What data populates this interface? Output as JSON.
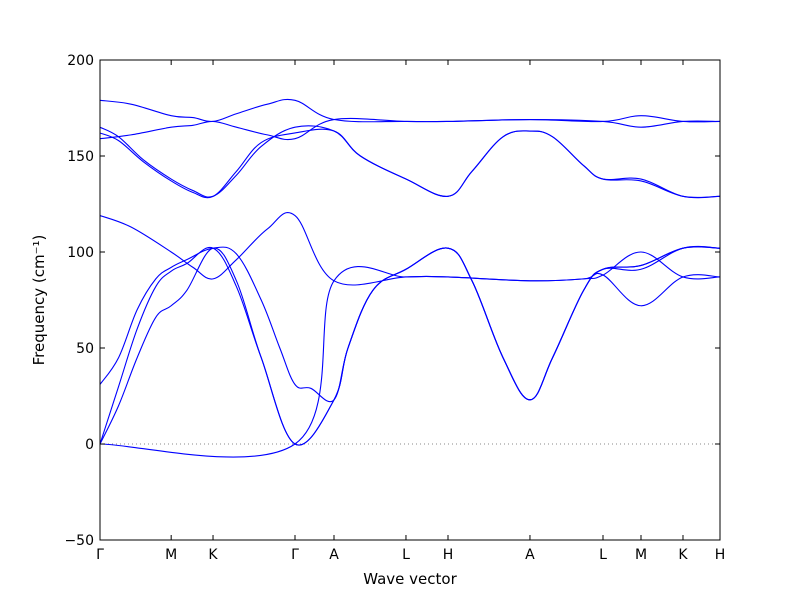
{
  "chart_data": {
    "type": "line",
    "title": "",
    "xlabel": "Wave vector",
    "ylabel": "Frequency (cm⁻¹)",
    "ylim": [
      -50,
      200
    ],
    "yticks": [
      -50,
      0,
      50,
      100,
      150,
      200
    ],
    "grid": false,
    "legend": "none",
    "line_color": "#0000ff",
    "zero_line": {
      "y": 0,
      "style": "dotted",
      "color": "#888888"
    },
    "x_range": [
      0,
      1
    ],
    "kpoints": [
      {
        "label": "Γ",
        "x": 0.0
      },
      {
        "label": "M",
        "x": 0.1148
      },
      {
        "label": "K",
        "x": 0.1823
      },
      {
        "label": "Γ",
        "x": 0.3145
      },
      {
        "label": "A",
        "x": 0.3774
      },
      {
        "label": "L",
        "x": 0.4935
      },
      {
        "label": "H",
        "x": 0.5613
      },
      {
        "label": "A",
        "x": 0.6935
      },
      {
        "label": "L",
        "x": 0.8113
      },
      {
        "label": "M",
        "x": 0.8726
      },
      {
        "label": "K",
        "x": 0.9403
      },
      {
        "label": "H",
        "x": 1.0
      }
    ],
    "series": [
      {
        "values": [
          [
            0,
            0
          ],
          [
            0.03,
            20
          ],
          [
            0.06,
            45
          ],
          [
            0.09,
            66
          ],
          [
            0.1148,
            72
          ],
          [
            0.14,
            80
          ],
          [
            0.1823,
            102
          ],
          [
            0.22,
            85
          ],
          [
            0.26,
            45
          ],
          [
            0.3145,
            0
          ],
          [
            0.3774,
            23
          ],
          [
            0.4,
            50
          ],
          [
            0.44,
            80
          ],
          [
            0.4935,
            91
          ],
          [
            0.5613,
            102
          ],
          [
            0.6,
            85
          ],
          [
            0.65,
            45
          ],
          [
            0.6935,
            23
          ],
          [
            0.73,
            45
          ],
          [
            0.78,
            80
          ],
          [
            0.8113,
            91
          ],
          [
            0.8726,
            91
          ],
          [
            0.9403,
            102
          ],
          [
            1.0,
            102
          ]
        ]
      },
      {
        "values": [
          [
            0,
            0
          ],
          [
            0.03,
            30
          ],
          [
            0.06,
            60
          ],
          [
            0.09,
            82
          ],
          [
            0.1148,
            90
          ],
          [
            0.14,
            94
          ],
          [
            0.1823,
            102
          ],
          [
            0.22,
            82
          ],
          [
            0.26,
            45
          ],
          [
            0.3145,
            0
          ],
          [
            0.3774,
            23
          ],
          [
            0.4,
            50
          ],
          [
            0.44,
            80
          ],
          [
            0.4935,
            91
          ],
          [
            0.5613,
            102
          ],
          [
            0.6,
            85
          ],
          [
            0.65,
            45
          ],
          [
            0.6935,
            23
          ],
          [
            0.73,
            45
          ],
          [
            0.78,
            80
          ],
          [
            0.8113,
            91
          ],
          [
            0.8726,
            93
          ],
          [
            0.9403,
            102
          ],
          [
            1.0,
            102
          ]
        ]
      },
      {
        "values": [
          [
            0,
            31
          ],
          [
            0.03,
            45
          ],
          [
            0.06,
            70
          ],
          [
            0.09,
            86
          ],
          [
            0.1148,
            92
          ],
          [
            0.14,
            96
          ],
          [
            0.1823,
            102
          ],
          [
            0.22,
            99
          ],
          [
            0.26,
            75
          ],
          [
            0.29,
            50
          ],
          [
            0.3145,
            31
          ],
          [
            0.34,
            29
          ],
          [
            0.3774,
            23
          ],
          [
            0.4,
            50
          ],
          [
            0.44,
            80
          ],
          [
            0.4935,
            91
          ],
          [
            0.5613,
            102
          ],
          [
            0.6,
            85
          ],
          [
            0.65,
            45
          ],
          [
            0.6935,
            23
          ],
          [
            0.73,
            45
          ],
          [
            0.78,
            80
          ],
          [
            0.8113,
            91
          ],
          [
            0.8726,
            93
          ],
          [
            0.9403,
            102
          ],
          [
            1.0,
            102
          ]
        ]
      },
      {
        "values": [
          [
            0,
            119
          ],
          [
            0.05,
            113
          ],
          [
            0.1148,
            100
          ],
          [
            0.15,
            92
          ],
          [
            0.1823,
            86
          ],
          [
            0.22,
            96
          ],
          [
            0.27,
            112
          ],
          [
            0.3145,
            119
          ],
          [
            0.3774,
            85
          ],
          [
            0.4935,
            87
          ],
          [
            0.5613,
            87
          ],
          [
            0.6935,
            85
          ],
          [
            0.78,
            86
          ],
          [
            0.8113,
            88
          ],
          [
            0.8726,
            100
          ],
          [
            0.9403,
            87
          ],
          [
            1.0,
            87
          ]
        ]
      },
      {
        "values": [
          [
            0,
            0
          ],
          [
            0.3145,
            0
          ],
          [
            0.3774,
            85
          ],
          [
            0.4935,
            87
          ],
          [
            0.5613,
            87
          ],
          [
            0.6935,
            85
          ],
          [
            0.78,
            86
          ],
          [
            0.8113,
            88
          ],
          [
            0.8726,
            72
          ],
          [
            0.9403,
            87
          ],
          [
            1.0,
            87
          ]
        ]
      },
      {
        "values": [
          [
            0,
            179
          ],
          [
            0.05,
            177
          ],
          [
            0.1148,
            171
          ],
          [
            0.15,
            170
          ],
          [
            0.1823,
            168
          ],
          [
            0.22,
            172
          ],
          [
            0.27,
            177
          ],
          [
            0.3145,
            179
          ],
          [
            0.3774,
            169
          ],
          [
            0.4935,
            168
          ],
          [
            0.5613,
            168
          ],
          [
            0.6935,
            169
          ],
          [
            0.8113,
            168
          ],
          [
            0.8726,
            171
          ],
          [
            0.9403,
            168
          ],
          [
            1.0,
            168
          ]
        ]
      },
      {
        "values": [
          [
            0,
            159
          ],
          [
            0.05,
            161
          ],
          [
            0.1148,
            165
          ],
          [
            0.15,
            166
          ],
          [
            0.1823,
            168
          ],
          [
            0.22,
            165
          ],
          [
            0.27,
            161
          ],
          [
            0.3145,
            159
          ],
          [
            0.3774,
            169
          ],
          [
            0.4935,
            168
          ],
          [
            0.5613,
            168
          ],
          [
            0.6935,
            169
          ],
          [
            0.8113,
            168
          ],
          [
            0.8726,
            165
          ],
          [
            0.9403,
            168
          ],
          [
            1.0,
            168
          ]
        ]
      },
      {
        "values": [
          [
            0,
            165
          ],
          [
            0.03,
            160
          ],
          [
            0.07,
            148
          ],
          [
            0.1148,
            138
          ],
          [
            0.15,
            132
          ],
          [
            0.1823,
            129
          ],
          [
            0.22,
            140
          ],
          [
            0.26,
            155
          ],
          [
            0.3145,
            165
          ],
          [
            0.3774,
            163
          ],
          [
            0.42,
            150
          ],
          [
            0.4935,
            138
          ],
          [
            0.5613,
            129
          ],
          [
            0.6,
            142
          ],
          [
            0.65,
            160
          ],
          [
            0.6935,
            163
          ],
          [
            0.73,
            160
          ],
          [
            0.78,
            145
          ],
          [
            0.8113,
            138
          ],
          [
            0.8726,
            138
          ],
          [
            0.9403,
            129
          ],
          [
            1.0,
            129
          ]
        ]
      },
      {
        "values": [
          [
            0,
            162
          ],
          [
            0.03,
            158
          ],
          [
            0.07,
            147
          ],
          [
            0.1148,
            137
          ],
          [
            0.15,
            131
          ],
          [
            0.1823,
            129
          ],
          [
            0.22,
            142
          ],
          [
            0.26,
            157
          ],
          [
            0.3145,
            162
          ],
          [
            0.3774,
            163
          ],
          [
            0.42,
            150
          ],
          [
            0.4935,
            138
          ],
          [
            0.5613,
            129
          ],
          [
            0.6,
            142
          ],
          [
            0.65,
            160
          ],
          [
            0.6935,
            163
          ],
          [
            0.73,
            160
          ],
          [
            0.78,
            145
          ],
          [
            0.8113,
            138
          ],
          [
            0.8726,
            137
          ],
          [
            0.9403,
            129
          ],
          [
            1.0,
            129
          ]
        ]
      }
    ]
  }
}
